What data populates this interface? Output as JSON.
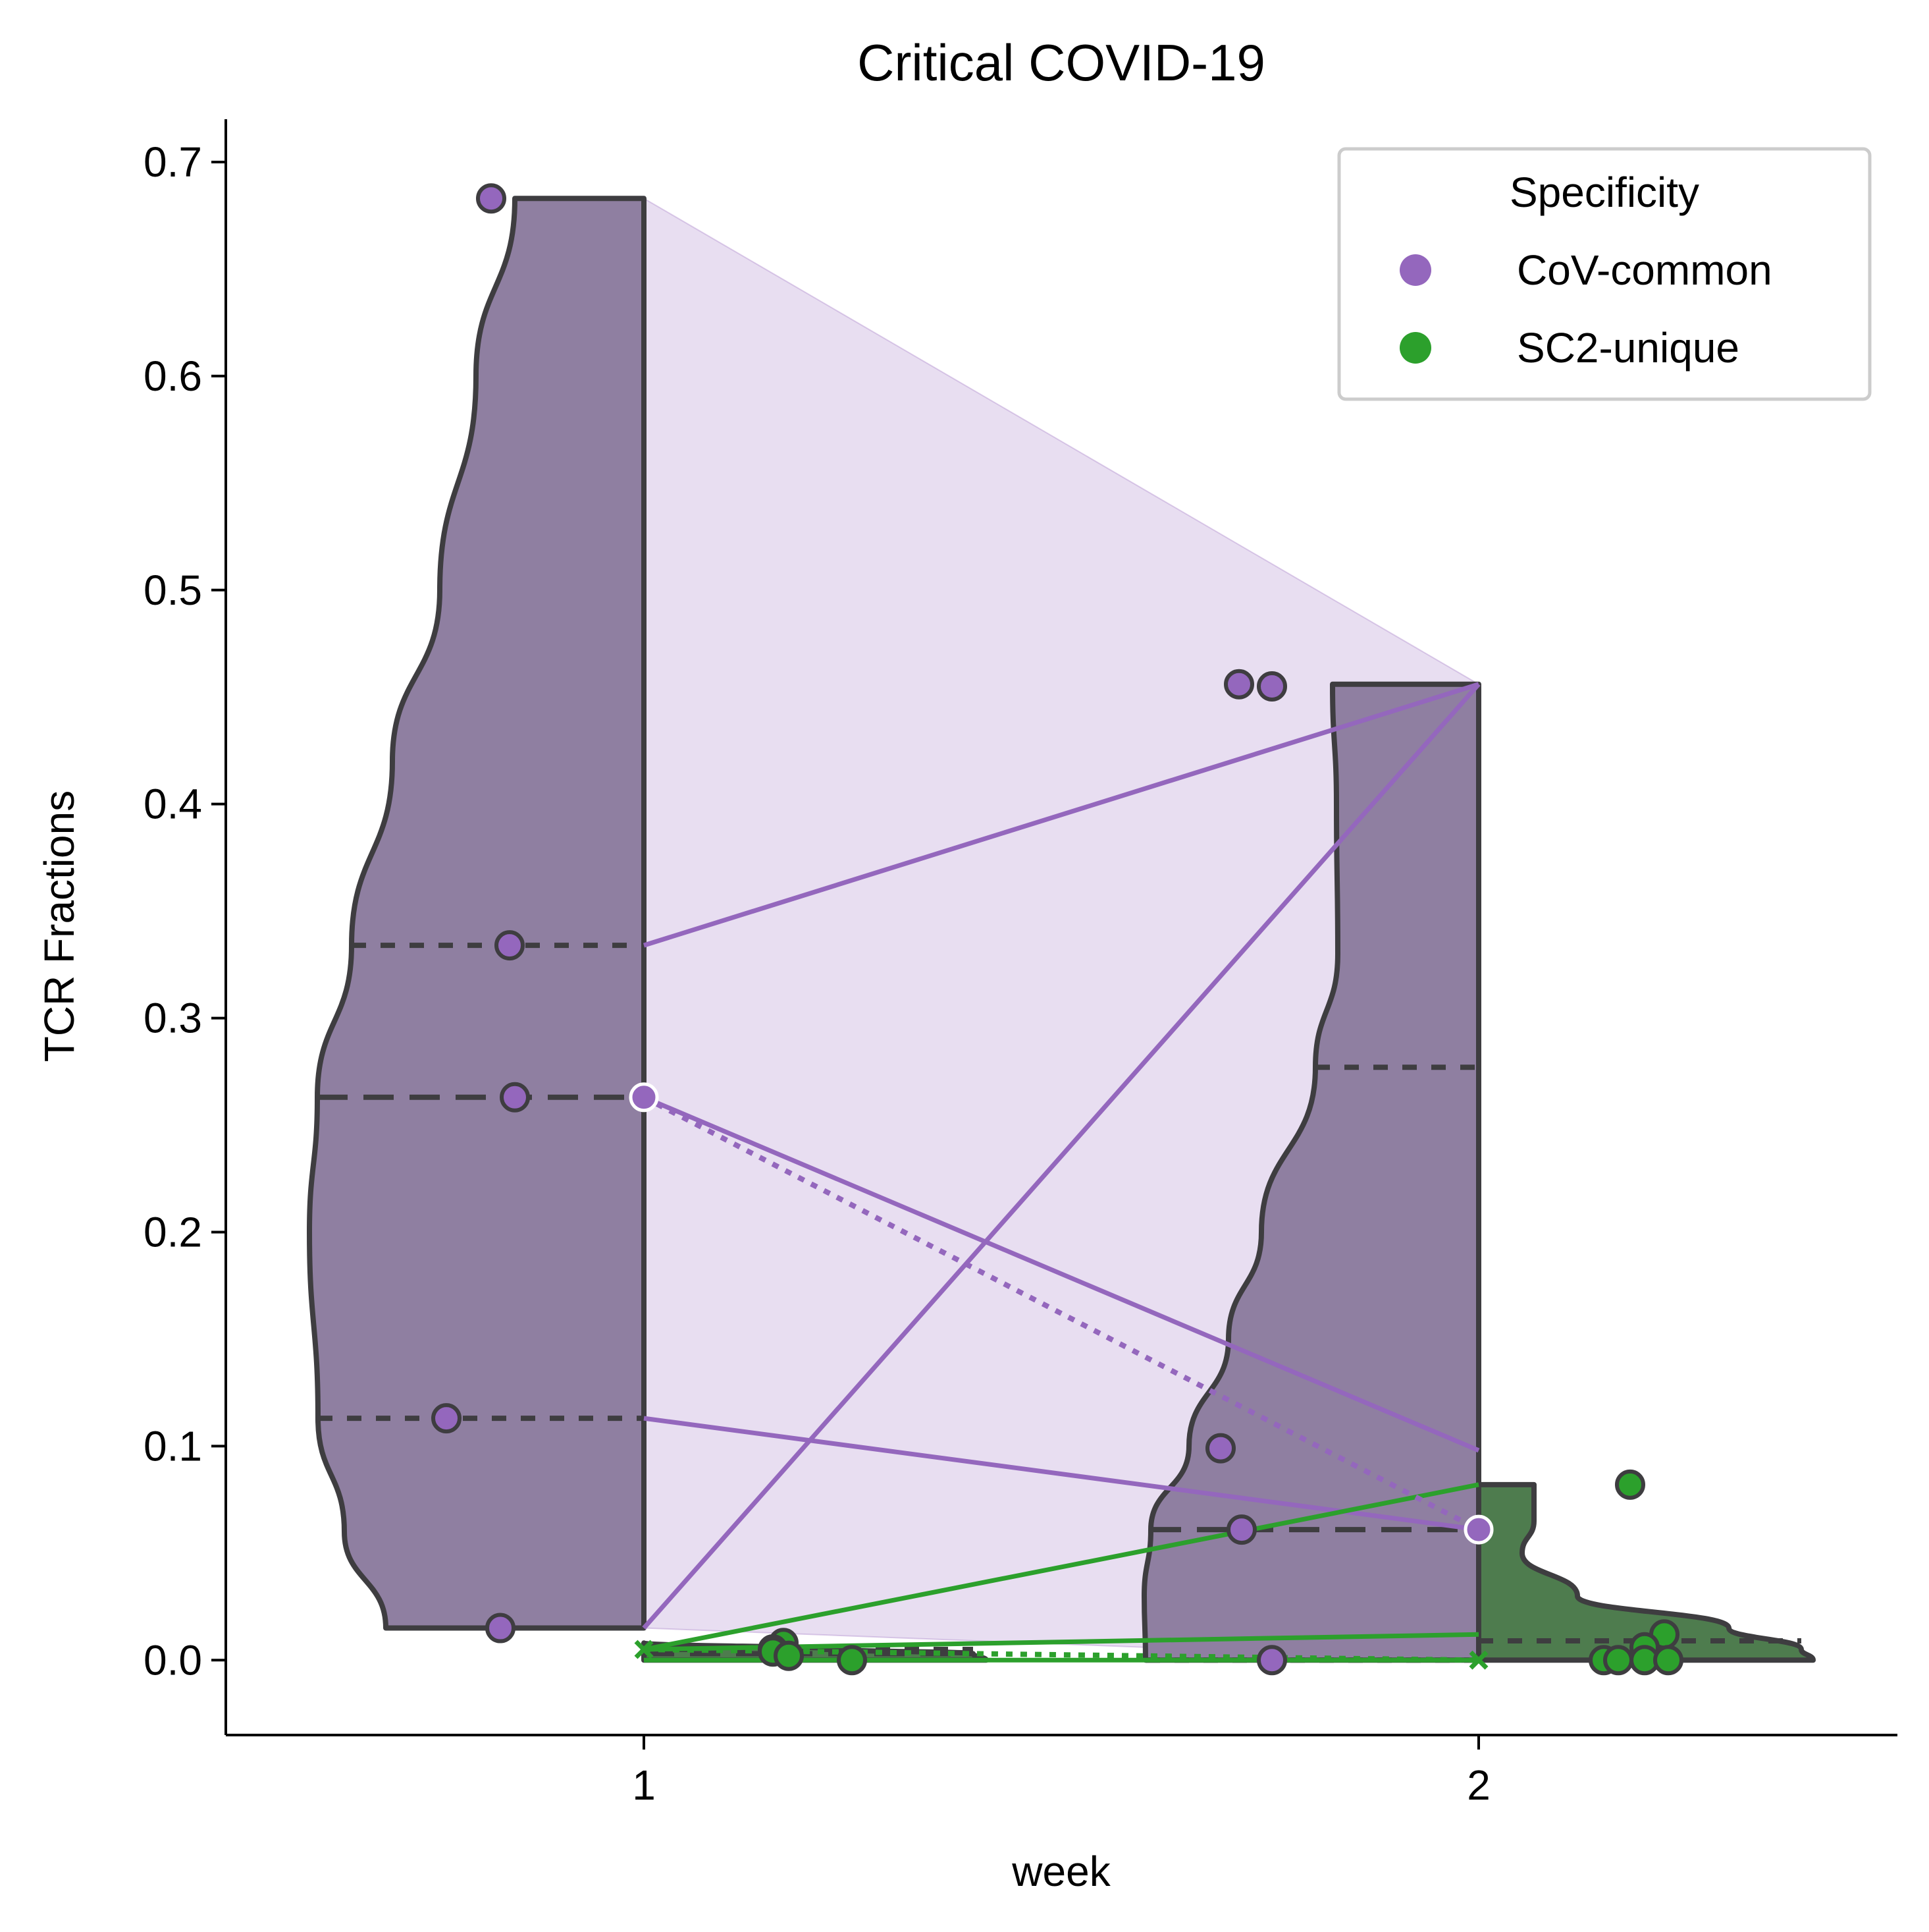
{
  "chart_data": {
    "type": "violin",
    "title": "Critical COVID-19",
    "xlabel": "week",
    "ylabel": "TCR Fractions",
    "categories": [
      "1",
      "2"
    ],
    "ylim": [
      -0.035,
      0.72
    ],
    "yticks": [
      0.0,
      0.1,
      0.2,
      0.3,
      0.4,
      0.5,
      0.6,
      0.7
    ],
    "ytick_labels": [
      "0.0",
      "0.1",
      "0.2",
      "0.3",
      "0.4",
      "0.5",
      "0.6",
      "0.7"
    ],
    "grid": false,
    "legend": {
      "title": "Specificity",
      "placement": "top-right",
      "entries": [
        {
          "label": "CoV-common",
          "color": "#9467bd"
        },
        {
          "label": "SC2-unique",
          "color": "#2ca02c"
        }
      ]
    },
    "series": [
      {
        "name": "CoV-common",
        "color": "#9467bd",
        "violin_fill": "#8f7fa1",
        "points": {
          "1": [
            0.683,
            0.334,
            0.263,
            0.113,
            0.015
          ],
          "2": [
            0.456,
            0.455,
            0.099,
            0.061,
            0.0
          ]
        },
        "quartiles": {
          "1": [
            0.113,
            0.263,
            0.334
          ],
          "2": [
            0.0,
            0.061,
            0.277
          ]
        },
        "mean": {
          "1": 0.263,
          "2": 0.061
        },
        "max": {
          "1": 0.683,
          "2": 0.456
        }
      },
      {
        "name": "SC2-unique",
        "color": "#2ca02c",
        "violin_fill": "#4e7c4e",
        "points": {
          "1": [
            0.008,
            0.005,
            0.004,
            0.002,
            0.0
          ],
          "2": [
            0.082,
            0.012,
            0.006,
            0.0,
            0.0,
            0.0,
            0.0
          ]
        },
        "quartiles": {
          "1": [
            0.0,
            0.003,
            0.005
          ],
          "2": [
            0.0,
            0.0,
            0.009
          ]
        },
        "mean": {
          "1": 0.005,
          "2": 0.0
        },
        "max": {
          "1": 0.008,
          "2": 0.082
        }
      }
    ],
    "connecting_lines": [
      {
        "series": "CoV-common",
        "from": 0.334,
        "to": 0.456
      },
      {
        "series": "CoV-common",
        "from": 0.263,
        "to": 0.098
      },
      {
        "series": "CoV-common",
        "from": 0.113,
        "to": 0.061
      },
      {
        "series": "CoV-common",
        "from": 0.015,
        "to": 0.456
      },
      {
        "series": "SC2-unique",
        "from": 0.005,
        "to": 0.082
      },
      {
        "series": "SC2-unique",
        "from": 0.005,
        "to": 0.012
      },
      {
        "series": "SC2-unique",
        "from": 0.0,
        "to": 0.0
      }
    ],
    "mean_lines": [
      {
        "series": "CoV-common",
        "from": 0.263,
        "to": 0.061
      },
      {
        "series": "SC2-unique",
        "from": 0.005,
        "to": 0.0
      }
    ],
    "range_band": {
      "series": "CoV-common",
      "from": [
        0.015,
        0.683
      ],
      "to": [
        0.0,
        0.456
      ]
    }
  }
}
